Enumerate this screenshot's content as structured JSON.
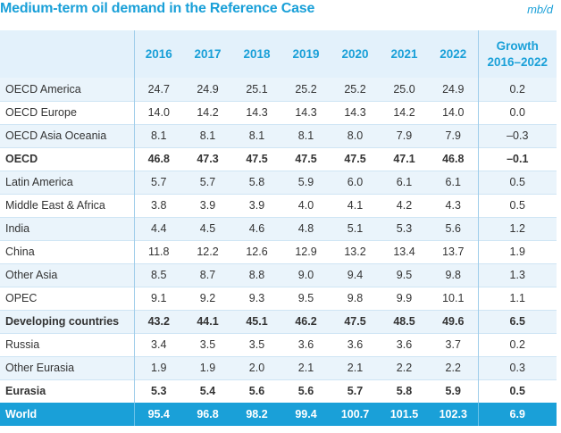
{
  "title": "Medium-term oil demand in the Reference Case",
  "unit": "mb/d",
  "columns": {
    "years": [
      "2016",
      "2017",
      "2018",
      "2019",
      "2020",
      "2021",
      "2022"
    ],
    "growth_line1": "Growth",
    "growth_line2": "2016–2022"
  },
  "rows": [
    {
      "label": "OECD America",
      "values": [
        "24.7",
        "24.9",
        "25.1",
        "25.2",
        "25.2",
        "25.0",
        "24.9"
      ],
      "growth": "0.2"
    },
    {
      "label": "OECD Europe",
      "values": [
        "14.0",
        "14.2",
        "14.3",
        "14.3",
        "14.3",
        "14.2",
        "14.0"
      ],
      "growth": "0.0"
    },
    {
      "label": "OECD Asia Oceania",
      "values": [
        "8.1",
        "8.1",
        "8.1",
        "8.1",
        "8.0",
        "7.9",
        "7.9"
      ],
      "growth": "–0.3"
    },
    {
      "label": "OECD",
      "values": [
        "46.8",
        "47.3",
        "47.5",
        "47.5",
        "47.5",
        "47.1",
        "46.8"
      ],
      "growth": "–0.1"
    },
    {
      "label": "Latin America",
      "values": [
        "5.7",
        "5.7",
        "5.8",
        "5.9",
        "6.0",
        "6.1",
        "6.1"
      ],
      "growth": "0.5"
    },
    {
      "label": "Middle East & Africa",
      "values": [
        "3.8",
        "3.9",
        "3.9",
        "4.0",
        "4.1",
        "4.2",
        "4.3"
      ],
      "growth": "0.5"
    },
    {
      "label": "India",
      "values": [
        "4.4",
        "4.5",
        "4.6",
        "4.8",
        "5.1",
        "5.3",
        "5.6"
      ],
      "growth": "1.2"
    },
    {
      "label": "China",
      "values": [
        "11.8",
        "12.2",
        "12.6",
        "12.9",
        "13.2",
        "13.4",
        "13.7"
      ],
      "growth": "1.9"
    },
    {
      "label": "Other Asia",
      "values": [
        "8.5",
        "8.7",
        "8.8",
        "9.0",
        "9.4",
        "9.5",
        "9.8"
      ],
      "growth": "1.3"
    },
    {
      "label": "OPEC",
      "values": [
        "9.1",
        "9.2",
        "9.3",
        "9.5",
        "9.8",
        "9.9",
        "10.1"
      ],
      "growth": "1.1"
    },
    {
      "label": "Developing countries",
      "values": [
        "43.2",
        "44.1",
        "45.1",
        "46.2",
        "47.5",
        "48.5",
        "49.6"
      ],
      "growth": "6.5"
    },
    {
      "label": "Russia",
      "values": [
        "3.4",
        "3.5",
        "3.5",
        "3.6",
        "3.6",
        "3.6",
        "3.7"
      ],
      "growth": "0.2"
    },
    {
      "label": "Other Eurasia",
      "values": [
        "1.9",
        "1.9",
        "2.0",
        "2.1",
        "2.1",
        "2.2",
        "2.2"
      ],
      "growth": "0.3"
    },
    {
      "label": "Eurasia",
      "values": [
        "5.3",
        "5.4",
        "5.6",
        "5.6",
        "5.7",
        "5.8",
        "5.9"
      ],
      "growth": "0.5"
    },
    {
      "label": "World",
      "values": [
        "95.4",
        "96.8",
        "98.2",
        "99.4",
        "100.7",
        "101.5",
        "102.3"
      ],
      "growth": "6.9"
    }
  ],
  "styles": {
    "accent": "#1aa0d8",
    "header_bg": "#e3f1fb",
    "alt_row_bg": "#eaf4fb"
  }
}
